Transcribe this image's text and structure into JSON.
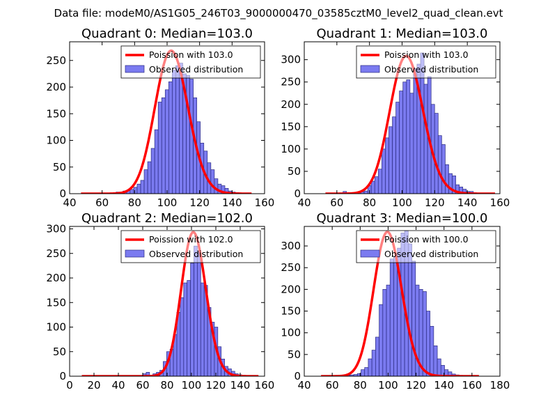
{
  "figure_title": "Data file: modeM0/AS1G05_246T03_9000000470_03585cztM0_level2_quad_clean.evt",
  "colors": {
    "bar_fill": "#7b7bf0",
    "bar_edge": "#2a2a80",
    "curve": "#ff0000",
    "axis": "#000000"
  },
  "chart_data": [
    {
      "type": "bar",
      "title": "Quadrant 0: Median=103.0",
      "legend": {
        "curve": "Poission with 103.0",
        "bars": "Observed distribution",
        "placement": "top-right"
      },
      "xlim": [
        40,
        160
      ],
      "ylim": [
        0,
        285
      ],
      "xticks": [
        40,
        60,
        80,
        100,
        120,
        140,
        160
      ],
      "yticks": [
        0,
        50,
        100,
        150,
        200,
        250
      ],
      "bin_width": 2.16,
      "bin_edges_start": 47,
      "counts": [
        0,
        0,
        0,
        0,
        0,
        0,
        0,
        0,
        0,
        0,
        3,
        3,
        5,
        6,
        8,
        12,
        18,
        25,
        45,
        60,
        85,
        120,
        172,
        180,
        195,
        210,
        232,
        240,
        245,
        225,
        222,
        215,
        180,
        135,
        95,
        80,
        58,
        45,
        28,
        18,
        15,
        10,
        5,
        3,
        2,
        0,
        0,
        0,
        0
      ],
      "poisson": {
        "mu": 103.0,
        "peak": 268,
        "xrange": [
          47,
          152
        ]
      }
    },
    {
      "type": "bar",
      "title": "Quadrant 1: Median=103.0",
      "legend": {
        "curve": "Poission with 103.0",
        "bars": "Observed distribution",
        "placement": "top-right"
      },
      "xlim": [
        40,
        160
      ],
      "ylim": [
        0,
        340
      ],
      "xticks": [
        40,
        60,
        80,
        100,
        120,
        140,
        160
      ],
      "yticks": [
        0,
        50,
        100,
        150,
        200,
        250,
        300
      ],
      "bin_width": 2.16,
      "bin_edges_start": 53,
      "counts": [
        0,
        0,
        0,
        0,
        2,
        5,
        0,
        2,
        0,
        2,
        4,
        6,
        18,
        28,
        38,
        55,
        100,
        125,
        150,
        172,
        205,
        230,
        250,
        255,
        225,
        280,
        290,
        315,
        245,
        262,
        200,
        180,
        130,
        110,
        65,
        45,
        40,
        20,
        15,
        10,
        5,
        5,
        2,
        0,
        0,
        0,
        0,
        0
      ],
      "poisson": {
        "mu": 103.0,
        "peak": 308,
        "xrange": [
          53,
          157
        ]
      }
    },
    {
      "type": "bar",
      "title": "Quadrant 2: Median=102.0",
      "legend": {
        "curve": "Poission with 102.0",
        "bars": "Observed distribution",
        "placement": "top-right"
      },
      "xlim": [
        0,
        160
      ],
      "ylim": [
        0,
        305
      ],
      "xticks": [
        0,
        20,
        40,
        60,
        80,
        100,
        120,
        140,
        160
      ],
      "yticks": [
        0,
        50,
        100,
        150,
        200,
        250,
        300
      ],
      "bin_width": 2.8,
      "bin_edges_start": 60,
      "counts": [
        5,
        8,
        0,
        5,
        8,
        12,
        30,
        50,
        55,
        85,
        130,
        160,
        190,
        195,
        230,
        265,
        255,
        190,
        185,
        140,
        110,
        100,
        60,
        35,
        20,
        15,
        10,
        5,
        3,
        2,
        0
      ],
      "poisson": {
        "mu": 102.0,
        "peak": 293,
        "xrange": [
          10,
          155
        ]
      }
    },
    {
      "type": "bar",
      "title": "Quadrant 3: Median=100.0",
      "legend": {
        "curve": "Poission with 100.0",
        "bars": "Observed distribution",
        "placement": "top-right"
      },
      "xlim": [
        40,
        180
      ],
      "ylim": [
        0,
        345
      ],
      "xticks": [
        40,
        60,
        80,
        100,
        120,
        140,
        160,
        180
      ],
      "yticks": [
        0,
        50,
        100,
        150,
        200,
        250,
        300
      ],
      "bin_width": 2.6,
      "bin_edges_start": 52,
      "counts": [
        0,
        0,
        0,
        0,
        0,
        0,
        0,
        2,
        3,
        4,
        6,
        15,
        20,
        40,
        60,
        90,
        165,
        200,
        210,
        270,
        275,
        295,
        330,
        335,
        305,
        265,
        210,
        200,
        195,
        150,
        115,
        70,
        40,
        25,
        15,
        10,
        5,
        3,
        2,
        0,
        0,
        0,
        0,
        0
      ],
      "poisson": {
        "mu": 100.0,
        "peak": 332,
        "xrange": [
          52,
          165
        ]
      }
    }
  ]
}
